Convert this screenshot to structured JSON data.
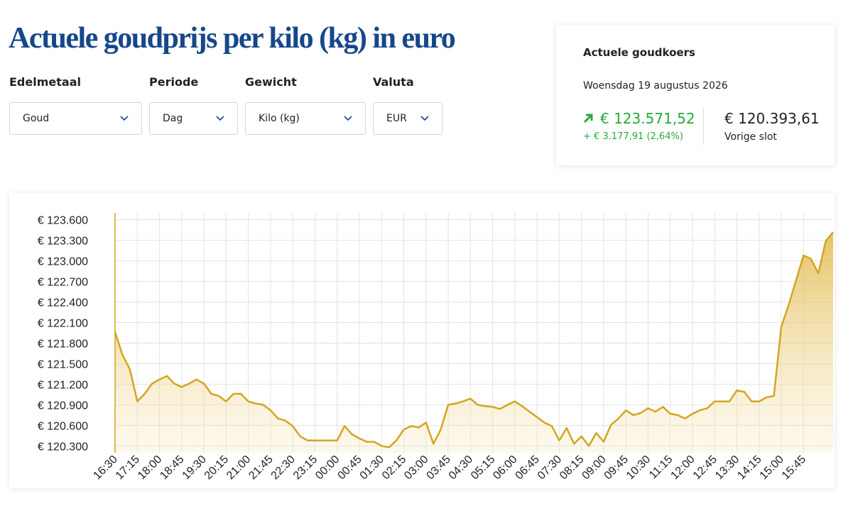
{
  "header": {
    "title": "Actuele goudprijs per kilo (kg) in euro"
  },
  "filters": [
    {
      "label": "Edelmetaal",
      "value": "Goud"
    },
    {
      "label": "Periode",
      "value": "Dag"
    },
    {
      "label": "Gewicht",
      "value": "Kilo (kg)"
    },
    {
      "label": "Valuta",
      "value": "EUR"
    }
  ],
  "quote": {
    "title": "Actuele goudkoers",
    "date": "Woensdag 19 augustus 2026",
    "price": "€ 123.571,52",
    "change": "+ € 3.177,91 (2,64%)",
    "previous": "€ 120.393,61",
    "previous_label": "Vorige slot"
  },
  "chart_data": {
    "type": "area",
    "color": "#d4a521",
    "grid": true,
    "categories": [
      "16:30",
      null,
      null,
      "17:15",
      null,
      null,
      "18:00",
      null,
      null,
      "18:45",
      null,
      null,
      "19:30",
      null,
      null,
      "20:15",
      null,
      null,
      "21:00",
      null,
      null,
      "21:45",
      null,
      null,
      "22:30",
      null,
      null,
      "23:15",
      null,
      null,
      "00:00",
      null,
      null,
      "00:45",
      null,
      null,
      "01:30",
      null,
      null,
      "02:15",
      null,
      null,
      "03:00",
      null,
      null,
      "03:45",
      null,
      null,
      "04:30",
      null,
      null,
      "05:15",
      null,
      null,
      "06:00",
      null,
      null,
      "06:45",
      null,
      null,
      "07:30",
      null,
      null,
      "08:15",
      null,
      null,
      "09:00",
      null,
      null,
      "09:45",
      null,
      null,
      "10:30",
      null,
      null,
      "11:15",
      null,
      null,
      "12:00",
      null,
      null,
      "12:45",
      null,
      null,
      "13:30",
      null,
      null,
      "14:15",
      null,
      null,
      "15:00",
      null,
      null,
      "15:45",
      null,
      null,
      null,
      null
    ],
    "values": [
      121960,
      121630,
      121420,
      120950,
      121060,
      121210,
      121270,
      121320,
      121210,
      121160,
      121210,
      121270,
      121210,
      121060,
      121030,
      120950,
      121060,
      121060,
      120950,
      120920,
      120900,
      120820,
      120700,
      120670,
      120590,
      120440,
      120380,
      120380,
      120380,
      120380,
      120380,
      120590,
      120470,
      120410,
      120360,
      120360,
      120300,
      120280,
      120380,
      120540,
      120590,
      120570,
      120640,
      120330,
      120540,
      120900,
      120920,
      120950,
      120990,
      120900,
      120880,
      120870,
      120840,
      120900,
      120950,
      120880,
      120800,
      120720,
      120640,
      120590,
      120380,
      120560,
      120330,
      120440,
      120300,
      120490,
      120360,
      120610,
      120700,
      120820,
      120750,
      120780,
      120850,
      120800,
      120870,
      120770,
      120750,
      120700,
      120770,
      120820,
      120850,
      120950,
      120950,
      120950,
      121110,
      121090,
      120950,
      120950,
      121010,
      121030,
      122040,
      122360,
      122720,
      123080,
      123030,
      122820,
      123290,
      123420
    ],
    "ylim": [
      120200,
      123700
    ],
    "yticks": [
      {
        "value": 120300,
        "label": "€ 120.300"
      },
      {
        "value": 120600,
        "label": "€ 120.600"
      },
      {
        "value": 120900,
        "label": "€ 120.900"
      },
      {
        "value": 121200,
        "label": "€ 121.200"
      },
      {
        "value": 121500,
        "label": "€ 121.500"
      },
      {
        "value": 121800,
        "label": "€ 121.800"
      },
      {
        "value": 122100,
        "label": "€ 122.100"
      },
      {
        "value": 122400,
        "label": "€ 122.400"
      },
      {
        "value": 122700,
        "label": "€ 122.700"
      },
      {
        "value": 123000,
        "label": "€ 123.000"
      },
      {
        "value": 123300,
        "label": "€ 123.300"
      },
      {
        "value": 123600,
        "label": "€ 123.600"
      }
    ]
  }
}
